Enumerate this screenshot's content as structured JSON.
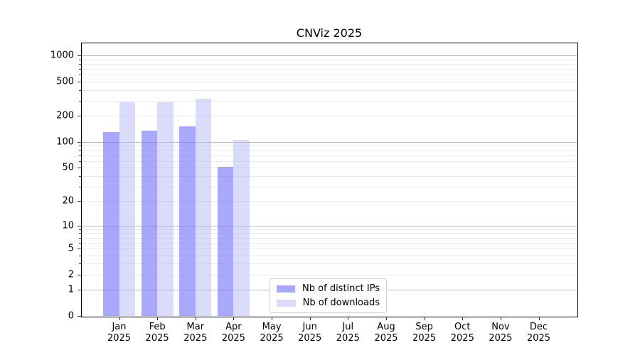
{
  "chart_data": {
    "type": "bar",
    "title": "CNViz 2025",
    "categories": [
      "Jan",
      "Feb",
      "Mar",
      "Apr",
      "May",
      "Jun",
      "Jul",
      "Aug",
      "Sep",
      "Oct",
      "Nov",
      "Dec"
    ],
    "year_label": "2025",
    "series": [
      {
        "name": "Nb of distinct IPs",
        "color_hex": "#a8a8f8",
        "fill": "rgba(122,122,252,0.65)",
        "values": [
          130,
          136,
          152,
          51,
          0,
          0,
          0,
          0,
          0,
          0,
          0,
          0
        ]
      },
      {
        "name": "Nb of downloads",
        "color_hex": "#dbdbfa",
        "fill": "rgba(183,183,247,0.5)",
        "values": [
          290,
          290,
          315,
          105,
          0,
          0,
          0,
          0,
          0,
          0,
          0,
          0
        ]
      }
    ],
    "y_axis": {
      "scale": "symlog",
      "tick_labels": [
        0,
        1,
        2,
        5,
        10,
        20,
        50,
        100,
        200,
        500,
        1000
      ],
      "major_gridlines": [
        1,
        10,
        100,
        1000
      ],
      "minor_gridlines": [
        2,
        3,
        4,
        5,
        6,
        7,
        8,
        9,
        20,
        30,
        40,
        50,
        60,
        70,
        80,
        90,
        200,
        300,
        400,
        500,
        600,
        700,
        800,
        900
      ],
      "range": [
        0,
        1400
      ]
    },
    "x_axis": {
      "label_format": "month over year"
    },
    "legend": {
      "position": "inside lower-center",
      "entries": [
        "Nb of distinct IPs",
        "Nb of downloads"
      ]
    },
    "grid": "horizontal major+minor, drawn under translucent bars",
    "colors": {
      "background": "#ffffff",
      "axis": "#000000",
      "major_grid": "#b8b8b8",
      "minor_grid": "#e9e9e9"
    }
  }
}
